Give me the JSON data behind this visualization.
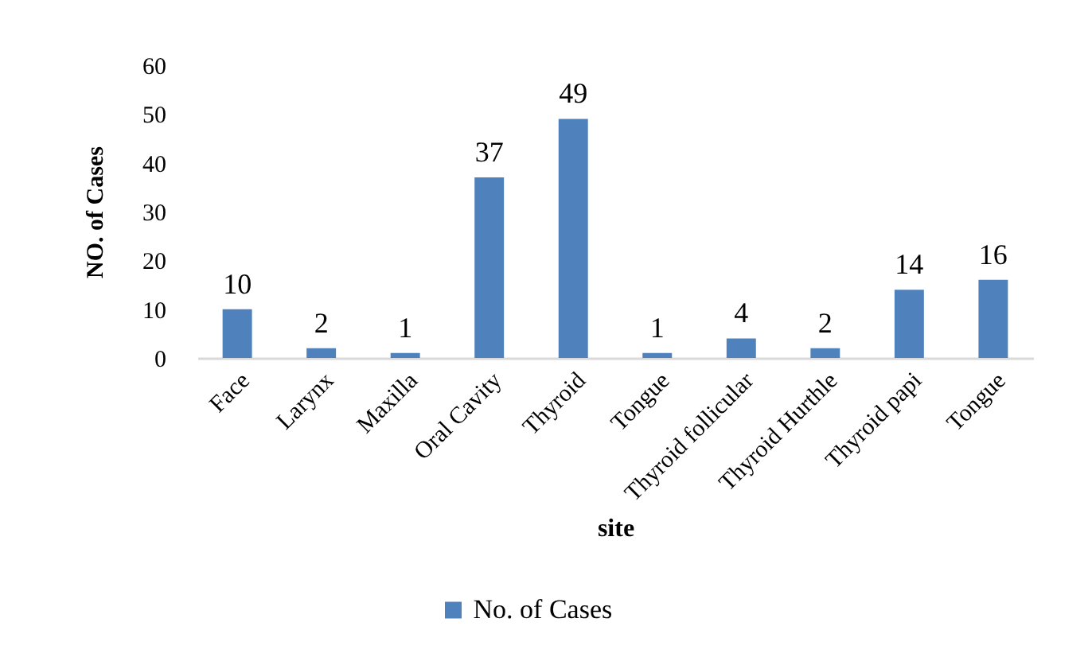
{
  "chart_data": {
    "type": "bar",
    "categories": [
      "Face",
      "Larynx",
      "Maxilla",
      "Oral Cavity",
      "Thyroid",
      "Tongue",
      "Thyroid follicular",
      "Thyroid Hurthle",
      "Thyroid papi",
      "Tongue"
    ],
    "series": [
      {
        "name": "No. of Cases",
        "color": "#4f81bd",
        "values": [
          10,
          2,
          1,
          37,
          49,
          1,
          4,
          2,
          14,
          16
        ]
      }
    ],
    "xlabel": "site",
    "ylabel": "NO. of Cases",
    "ylim": [
      0,
      60
    ],
    "yticks": [
      0,
      10,
      20,
      30,
      40,
      50,
      60
    ],
    "data_labels": true,
    "legend": "bottom"
  }
}
